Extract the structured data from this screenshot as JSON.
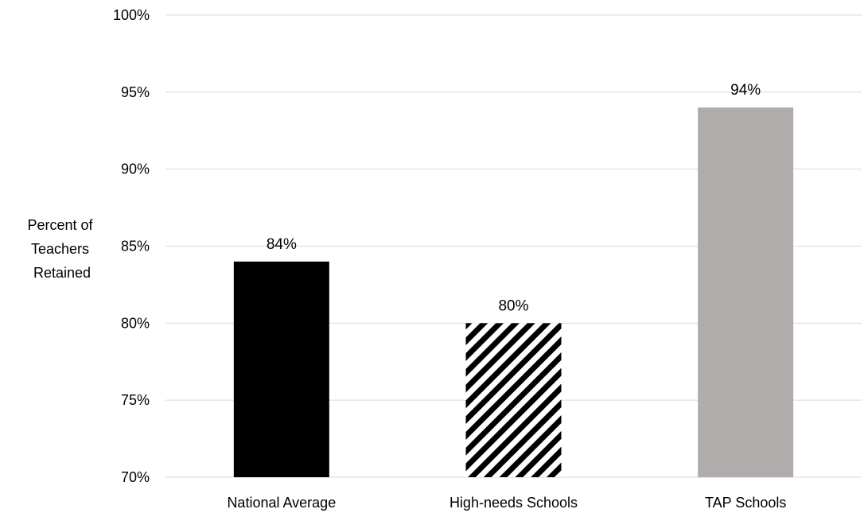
{
  "chart_data": {
    "type": "bar",
    "ylabel": "Percent of Teachers Retained",
    "ylabel_lines": [
      "Percent of",
      "Teachers",
      "Retained"
    ],
    "categories": [
      "National Average",
      "High-needs Schools",
      "TAP Schools"
    ],
    "values": [
      84,
      80,
      94
    ],
    "data_labels": [
      "84%",
      "80%",
      "94%"
    ],
    "ylim": [
      70,
      100
    ],
    "yticks": [
      70,
      75,
      80,
      85,
      90,
      95,
      100
    ],
    "ytick_labels": [
      "70%",
      "75%",
      "80%",
      "85%",
      "90%",
      "95%",
      "100%"
    ],
    "grid": true,
    "bar_fills": [
      "solid-black",
      "diagonal-stripes",
      "solid-gray"
    ],
    "colors": {
      "solid-black": "#000000",
      "solid-gray": "#b0acab",
      "grid": "#d9d9d9",
      "stripe": "#000000"
    }
  }
}
